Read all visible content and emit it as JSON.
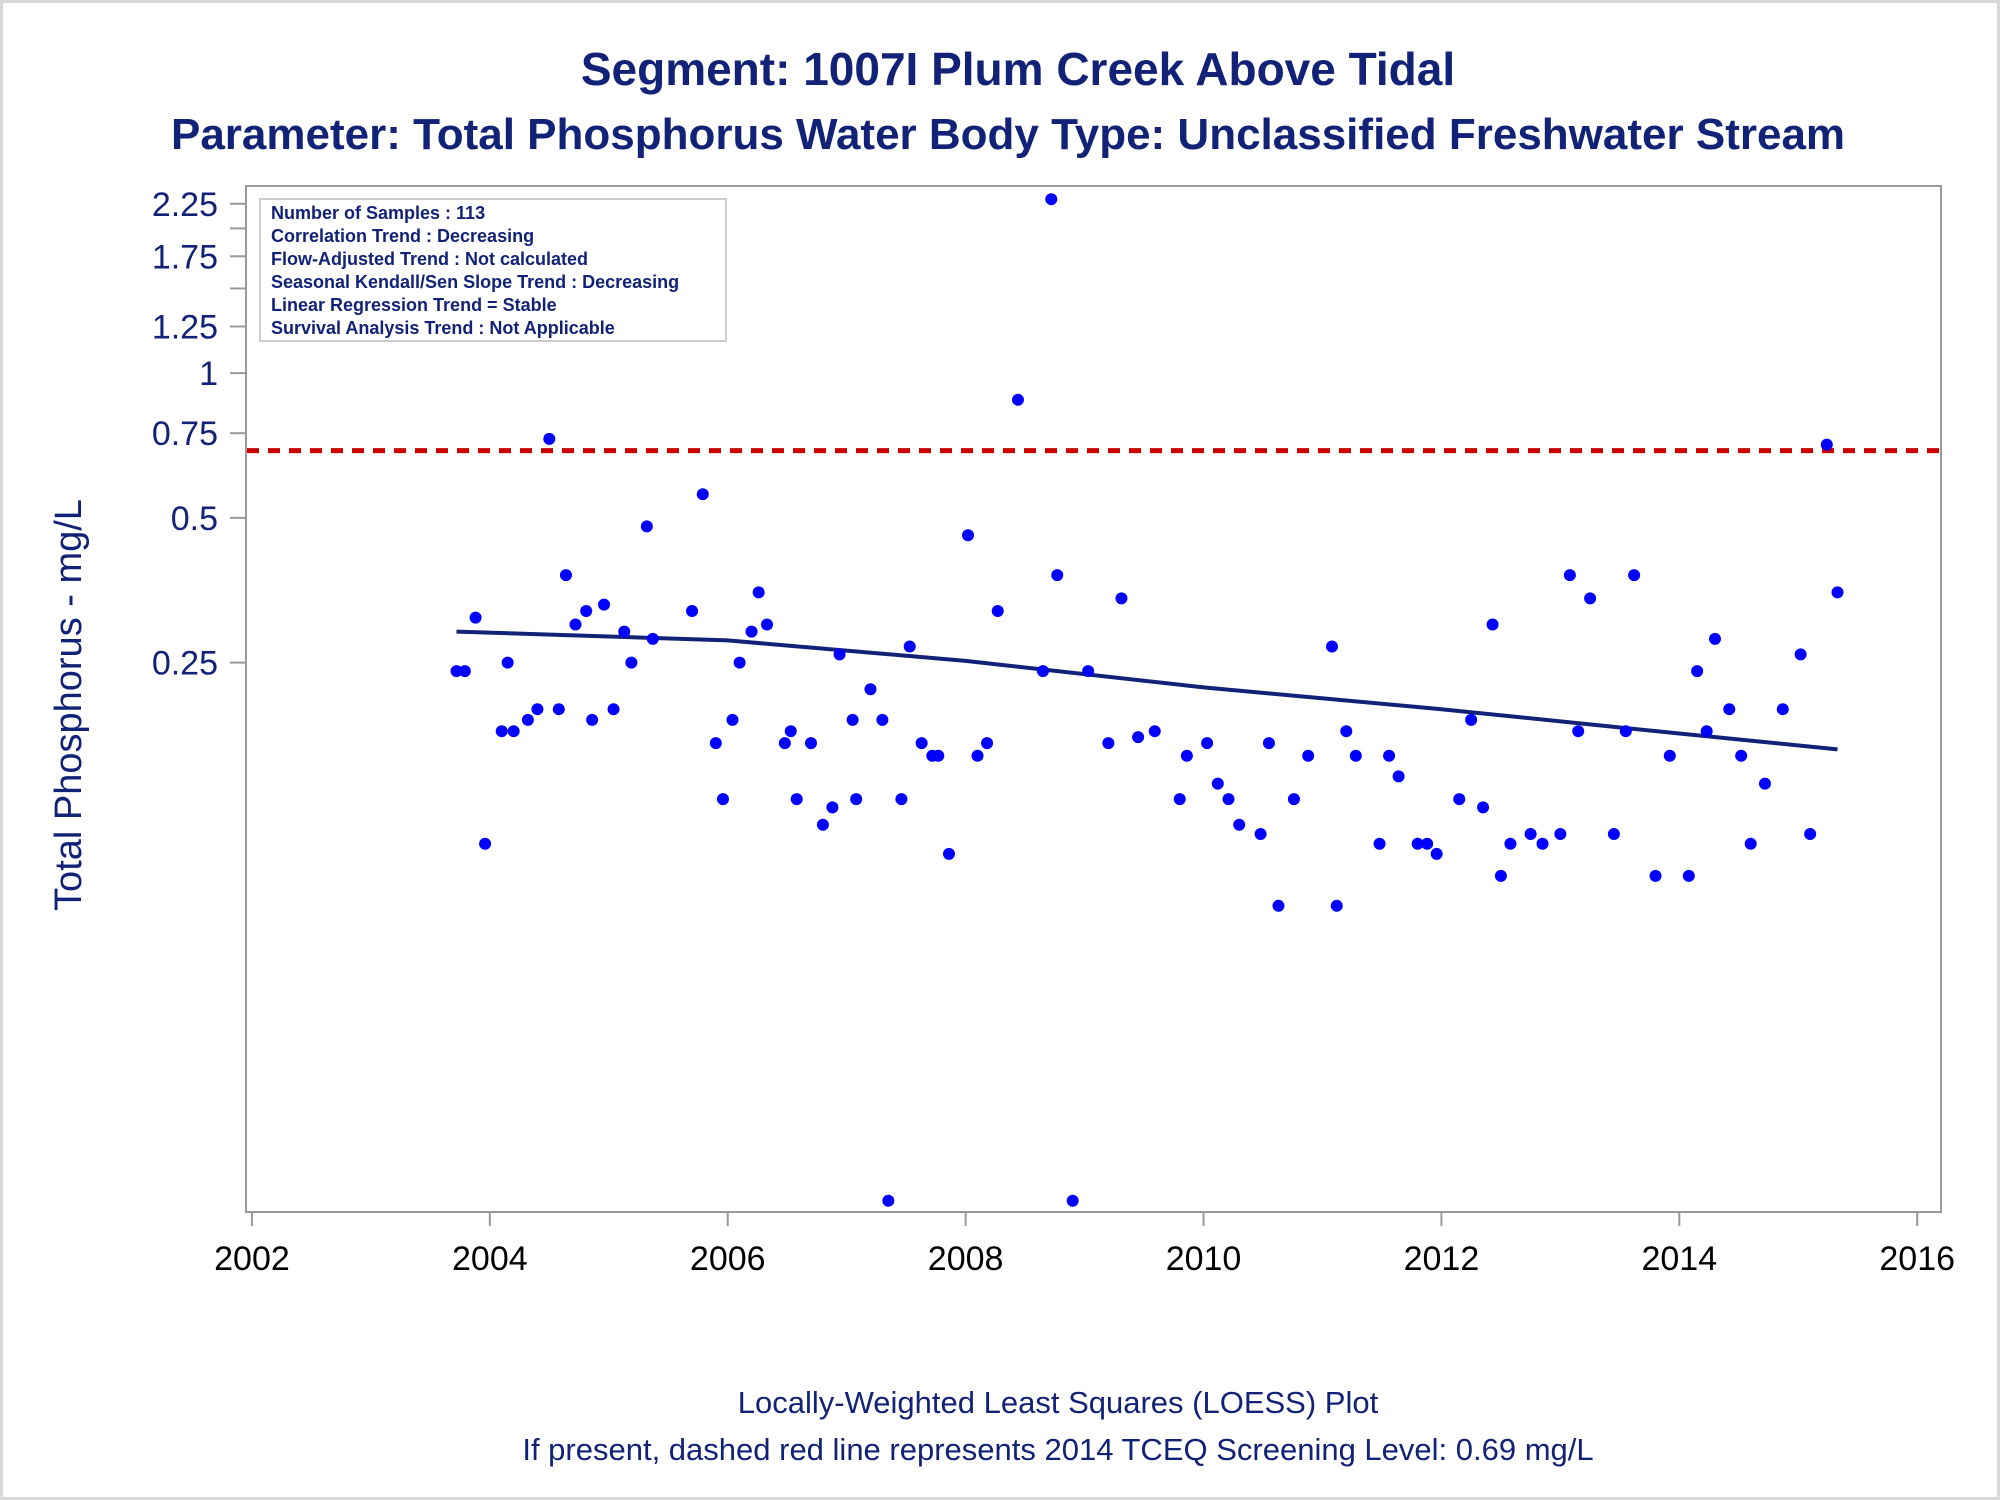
{
  "colors": {
    "text": "#112277",
    "points": "#0000ff",
    "loess": "#112277",
    "screening_line": "#cc0000",
    "frame": "#999999"
  },
  "chart_data": {
    "type": "scatter",
    "title": "Segment: 1007I  Plum Creek Above Tidal",
    "subtitle": "Parameter: Total Phosphorus   Water Body Type: Unclassified Freshwater Stream",
    "xlabel": "",
    "ylabel": "Total Phosphorus - mg/L",
    "y_scale": "log",
    "xlim": [
      2001.95,
      2016.2
    ],
    "ylim": [
      0.018,
      2.45
    ],
    "x_ticks": [
      "2002",
      "2004",
      "2006",
      "2008",
      "2010",
      "2012",
      "2014",
      "2016"
    ],
    "y_tick_labels": [
      "2.25",
      "1.75",
      "1.25",
      "1",
      "0.75",
      "0.5",
      "0.25"
    ],
    "y_minor_ticks": [
      2.0,
      1.5
    ],
    "grid": false,
    "stats_box": [
      "Number of Samples : 113",
      "Correlation Trend : Decreasing",
      "Flow-Adjusted Trend : Not calculated",
      "Seasonal Kendall/Sen Slope Trend : Decreasing",
      "Linear Regression Trend = Stable",
      "Survival Analysis Trend : Not Applicable"
    ],
    "stats_box_placement": "top-left",
    "screening_level": 0.69,
    "loess_line": {
      "x": [
        2003.72,
        2006,
        2008,
        2010,
        2012,
        2014,
        2015.33
      ],
      "y": [
        0.29,
        0.278,
        0.252,
        0.222,
        0.2,
        0.178,
        0.165
      ]
    },
    "footer": [
      "Locally-Weighted Least Squares (LOESS) Plot",
      "If present, dashed red line represents 2014 TCEQ Screening Level: 0.69 mg/L"
    ],
    "points": [
      [
        2003.72,
        0.24
      ],
      [
        2003.79,
        0.24
      ],
      [
        2003.88,
        0.31
      ],
      [
        2003.96,
        0.105
      ],
      [
        2004.1,
        0.18
      ],
      [
        2004.2,
        0.18
      ],
      [
        2004.15,
        0.25
      ],
      [
        2004.32,
        0.19
      ],
      [
        2004.4,
        0.2
      ],
      [
        2004.5,
        0.73
      ],
      [
        2004.58,
        0.2
      ],
      [
        2004.64,
        0.38
      ],
      [
        2004.72,
        0.3
      ],
      [
        2004.81,
        0.32
      ],
      [
        2004.86,
        0.19
      ],
      [
        2004.96,
        0.33
      ],
      [
        2005.04,
        0.2
      ],
      [
        2005.13,
        0.29
      ],
      [
        2005.19,
        0.25
      ],
      [
        2005.32,
        0.48
      ],
      [
        2005.37,
        0.28
      ],
      [
        2005.7,
        0.32
      ],
      [
        2005.79,
        0.56
      ],
      [
        2005.9,
        0.17
      ],
      [
        2005.96,
        0.13
      ],
      [
        2006.04,
        0.19
      ],
      [
        2006.1,
        0.25
      ],
      [
        2006.2,
        0.29
      ],
      [
        2006.26,
        0.35
      ],
      [
        2006.33,
        0.3
      ],
      [
        2006.48,
        0.17
      ],
      [
        2006.53,
        0.18
      ],
      [
        2006.58,
        0.13
      ],
      [
        2006.7,
        0.17
      ],
      [
        2006.8,
        0.115
      ],
      [
        2006.88,
        0.125
      ],
      [
        2006.94,
        0.26
      ],
      [
        2007.05,
        0.19
      ],
      [
        2007.08,
        0.13
      ],
      [
        2007.2,
        0.22
      ],
      [
        2007.3,
        0.19
      ],
      [
        2007.35,
        0.019
      ],
      [
        2007.46,
        0.13
      ],
      [
        2007.53,
        0.27
      ],
      [
        2007.63,
        0.17
      ],
      [
        2007.72,
        0.16
      ],
      [
        2007.77,
        0.16
      ],
      [
        2007.86,
        0.1
      ],
      [
        2008.02,
        0.46
      ],
      [
        2008.1,
        0.16
      ],
      [
        2008.18,
        0.17
      ],
      [
        2008.27,
        0.32
      ],
      [
        2008.44,
        0.88
      ],
      [
        2008.65,
        0.24
      ],
      [
        2008.72,
        2.3
      ],
      [
        2008.77,
        0.38
      ],
      [
        2008.9,
        0.019
      ],
      [
        2009.03,
        0.24
      ],
      [
        2009.2,
        0.17
      ],
      [
        2009.31,
        0.34
      ],
      [
        2009.45,
        0.175
      ],
      [
        2009.59,
        0.18
      ],
      [
        2009.8,
        0.13
      ],
      [
        2009.86,
        0.16
      ],
      [
        2010.03,
        0.17
      ],
      [
        2010.12,
        0.14
      ],
      [
        2010.21,
        0.13
      ],
      [
        2010.3,
        0.115
      ],
      [
        2010.48,
        0.11
      ],
      [
        2010.55,
        0.17
      ],
      [
        2010.63,
        0.078
      ],
      [
        2010.76,
        0.13
      ],
      [
        2010.88,
        0.16
      ],
      [
        2011.08,
        0.27
      ],
      [
        2011.12,
        0.078
      ],
      [
        2011.2,
        0.18
      ],
      [
        2011.28,
        0.16
      ],
      [
        2011.48,
        0.105
      ],
      [
        2011.56,
        0.16
      ],
      [
        2011.64,
        0.145
      ],
      [
        2011.8,
        0.105
      ],
      [
        2011.88,
        0.105
      ],
      [
        2011.96,
        0.1
      ],
      [
        2012.15,
        0.13
      ],
      [
        2012.25,
        0.19
      ],
      [
        2012.35,
        0.125
      ],
      [
        2012.43,
        0.3
      ],
      [
        2012.5,
        0.09
      ],
      [
        2012.58,
        0.105
      ],
      [
        2012.75,
        0.11
      ],
      [
        2012.85,
        0.105
      ],
      [
        2013.0,
        0.11
      ],
      [
        2013.08,
        0.38
      ],
      [
        2013.15,
        0.18
      ],
      [
        2013.25,
        0.34
      ],
      [
        2013.45,
        0.11
      ],
      [
        2013.55,
        0.18
      ],
      [
        2013.62,
        0.38
      ],
      [
        2013.8,
        0.09
      ],
      [
        2013.92,
        0.16
      ],
      [
        2014.08,
        0.09
      ],
      [
        2014.15,
        0.24
      ],
      [
        2014.23,
        0.18
      ],
      [
        2014.3,
        0.28
      ],
      [
        2014.42,
        0.2
      ],
      [
        2014.52,
        0.16
      ],
      [
        2014.6,
        0.105
      ],
      [
        2014.72,
        0.14
      ],
      [
        2014.87,
        0.2
      ],
      [
        2015.02,
        0.26
      ],
      [
        2015.1,
        0.11
      ],
      [
        2015.24,
        0.71
      ],
      [
        2015.33,
        0.35
      ]
    ]
  }
}
